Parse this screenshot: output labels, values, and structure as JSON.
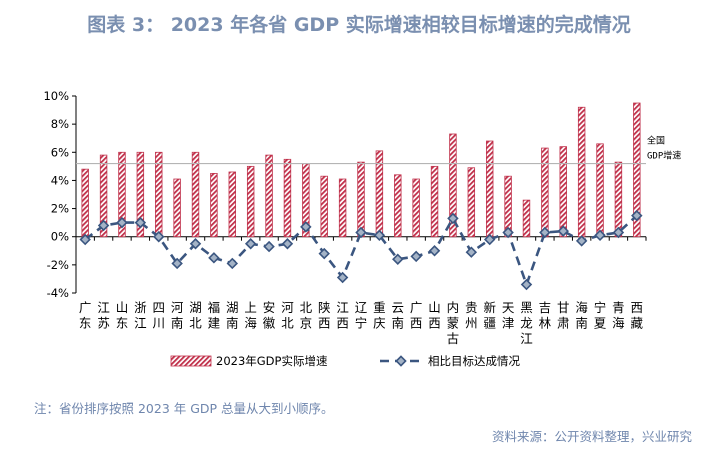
{
  "title": "图表 3：  2023 年各省 GDP 实际增速相较目标增速的完成情况",
  "footnote": "注：省份排序按照 2023 年 GDP 总量从大到小顺序。",
  "source": "资料来源：公开资料整理，兴业研究",
  "chart_data": {
    "type": "bar",
    "categories": [
      "广东",
      "江苏",
      "山东",
      "浙江",
      "四川",
      "河南",
      "湖北",
      "福建",
      "湖南",
      "上海",
      "安徽",
      "河北",
      "北京",
      "陕西",
      "江西",
      "辽宁",
      "重庆",
      "云南",
      "广西",
      "山西",
      "内蒙古",
      "贵州",
      "新疆",
      "天津",
      "黑龙江",
      "吉林",
      "甘肃",
      "海南",
      "宁夏",
      "青海",
      "西藏"
    ],
    "series": [
      {
        "name": "2023年GDP实际增速",
        "type": "bar",
        "values": [
          4.8,
          5.8,
          6.0,
          6.0,
          6.0,
          4.1,
          6.0,
          4.5,
          4.6,
          5.0,
          5.8,
          5.5,
          5.2,
          4.3,
          4.1,
          5.3,
          6.1,
          4.4,
          4.1,
          5.0,
          7.3,
          4.9,
          6.8,
          4.3,
          2.6,
          6.3,
          6.4,
          9.2,
          6.6,
          5.3,
          9.5
        ]
      },
      {
        "name": "相比目标达成情况",
        "type": "line",
        "values": [
          -0.2,
          0.8,
          1.0,
          1.0,
          0.0,
          -1.9,
          -0.5,
          -1.5,
          -1.9,
          -0.5,
          -0.7,
          -0.5,
          0.7,
          -1.2,
          -2.9,
          0.3,
          0.1,
          -1.6,
          -1.4,
          -1.0,
          1.3,
          -1.1,
          -0.2,
          0.3,
          -3.4,
          0.3,
          0.4,
          -0.3,
          0.1,
          0.3,
          1.5
        ]
      }
    ],
    "reference_line": {
      "value": 5.2,
      "label_line1": "全国",
      "label_line2": "GDP增速"
    },
    "ylim": [
      -4,
      10
    ],
    "yticks": [
      -4,
      -2,
      0,
      2,
      4,
      6,
      8,
      10
    ],
    "ytick_format": "percent",
    "xlabel": "",
    "ylabel": "",
    "legend_position": "bottom",
    "colors": {
      "bar": "#c0304a",
      "line": "#3b5680",
      "marker_fill": "#a4b3c6",
      "refline": "#b5b5b5"
    }
  }
}
